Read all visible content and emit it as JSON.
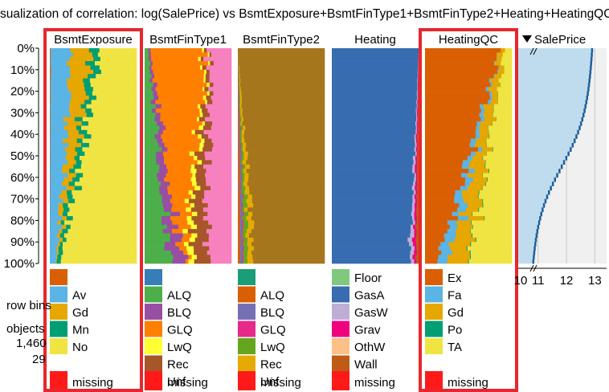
{
  "title": "sualization of correlation: log(SalePrice) vs BsmtExposure+BsmtFinType1+BsmtFinType2+Heating+HeatingQC",
  "side": {
    "row_bins_label": "row bins",
    "objects_label": "objects",
    "objects_count": "1,460",
    "bins_count": "29"
  },
  "colors": {
    "highlight_frame": "#e8262c",
    "missing": "#ff1a1a"
  },
  "chart_data": {
    "type": "tableplot",
    "y_axis_ticks": [
      "0%",
      "10%",
      "20%",
      "30%",
      "40%",
      "50%",
      "60%",
      "70%",
      "80%",
      "90%",
      "100%"
    ],
    "sort_indicator": "descending",
    "columns": [
      {
        "name": "BsmtExposure",
        "highlighted": true,
        "legend": [
          {
            "label": "",
            "color": "#d95f02"
          },
          {
            "label": "Av",
            "color": "#5ab4e5"
          },
          {
            "label": "Gd",
            "color": "#e6a700"
          },
          {
            "label": "Mn",
            "color": "#009e73"
          },
          {
            "label": "No",
            "color": "#f0e442"
          }
        ],
        "missing_label": "missing",
        "share_top": [
          0.01,
          0.26,
          0.22,
          0.1,
          0.41
        ],
        "share_bottom": [
          0.0,
          0.07,
          0.01,
          0.04,
          0.86
        ]
      },
      {
        "name": "BsmtFinType1",
        "highlighted": false,
        "legend": [
          {
            "label": "",
            "color": "#377eb8"
          },
          {
            "label": "ALQ",
            "color": "#4daf4a"
          },
          {
            "label": "BLQ",
            "color": "#984ea3"
          },
          {
            "label": "GLQ",
            "color": "#ff7f00"
          },
          {
            "label": "LwQ",
            "color": "#ffff33"
          },
          {
            "label": "Rec",
            "color": "#a65628"
          },
          {
            "label": "Unf",
            "color": "#f781bf"
          }
        ],
        "missing_label": "missing",
        "share_top": [
          0.0,
          0.04,
          0.02,
          0.65,
          0.02,
          0.03,
          0.24
        ],
        "share_bottom": [
          0.0,
          0.28,
          0.14,
          0.03,
          0.07,
          0.18,
          0.3
        ]
      },
      {
        "name": "BsmtFinType2",
        "highlighted": false,
        "legend": [
          {
            "label": "",
            "color": "#1b9e77"
          },
          {
            "label": "ALQ",
            "color": "#d95f02"
          },
          {
            "label": "BLQ",
            "color": "#7570b3"
          },
          {
            "label": "GLQ",
            "color": "#e7298a"
          },
          {
            "label": "LwQ",
            "color": "#66a61e"
          },
          {
            "label": "Rec",
            "color": "#e6ab02"
          },
          {
            "label": "Unf",
            "color": "#a6761d"
          }
        ],
        "missing_label": "missing",
        "share_top": [
          0.0,
          0.0,
          0.0,
          0.0,
          0.0,
          0.0,
          1.0
        ],
        "share_bottom": [
          0.0,
          0.03,
          0.03,
          0.01,
          0.05,
          0.07,
          0.81
        ]
      },
      {
        "name": "Heating",
        "highlighted": false,
        "legend": [
          {
            "label": "Floor",
            "color": "#7fc97f"
          },
          {
            "label": "GasA",
            "color": "#386cb0"
          },
          {
            "label": "GasW",
            "color": "#beaed4"
          },
          {
            "label": "Grav",
            "color": "#f0027f"
          },
          {
            "label": "OthW",
            "color": "#fdc086"
          },
          {
            "label": "Wall",
            "color": "#bf5b17"
          }
        ],
        "missing_label": "missing",
        "share_top": [
          0.0,
          1.0,
          0.0,
          0.0,
          0.0,
          0.0
        ],
        "share_bottom": [
          0.0,
          0.9,
          0.04,
          0.03,
          0.0,
          0.03
        ]
      },
      {
        "name": "HeatingQC",
        "highlighted": true,
        "legend": [
          {
            "label": "Ex",
            "color": "#d95f02"
          },
          {
            "label": "Fa",
            "color": "#5ab4e5"
          },
          {
            "label": "Gd",
            "color": "#e6a700"
          },
          {
            "label": "Po",
            "color": "#009e73"
          },
          {
            "label": "TA",
            "color": "#f0e442"
          }
        ],
        "missing_label": "missing",
        "share_top": [
          0.87,
          0.0,
          0.05,
          0.0,
          0.08
        ],
        "share_bottom": [
          0.16,
          0.12,
          0.22,
          0.01,
          0.49
        ]
      },
      {
        "name": "SalePrice",
        "sorted": true,
        "x_ticks": [
          "10",
          "11",
          "12",
          "13"
        ],
        "x_range": [
          10.3,
          13.3
        ],
        "bin_means_top": 12.96,
        "bin_means_bottom": 10.82
      }
    ]
  }
}
